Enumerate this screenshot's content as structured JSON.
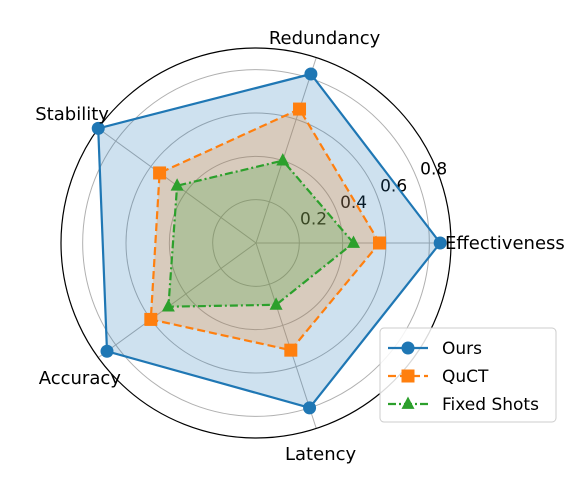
{
  "chart_data": {
    "type": "radar",
    "axes": [
      "Effectiveness",
      "Redundancy",
      "Stability",
      "Accuracy",
      "Latency"
    ],
    "rlim": [
      0,
      0.9
    ],
    "rticks": [
      0.2,
      0.4,
      0.6,
      0.8
    ],
    "rtick_labels": [
      "0.2",
      "0.4",
      "0.6",
      "0.8"
    ],
    "grid": true,
    "legend_position": "bottom-right",
    "series": [
      {
        "name": "Ours",
        "values": [
          0.85,
          0.82,
          0.9,
          0.85,
          0.8
        ],
        "color": "#1f77b4",
        "marker": "circle",
        "linestyle": "solid",
        "fill": true
      },
      {
        "name": "QuCT",
        "values": [
          0.57,
          0.65,
          0.55,
          0.6,
          0.52
        ],
        "color": "#ff7f0e",
        "marker": "square",
        "linestyle": "dashed",
        "fill": true
      },
      {
        "name": "Fixed Shots",
        "values": [
          0.45,
          0.4,
          0.45,
          0.5,
          0.3
        ],
        "color": "#2ca02c",
        "marker": "triangle",
        "linestyle": "dashdot",
        "fill": true
      }
    ]
  }
}
